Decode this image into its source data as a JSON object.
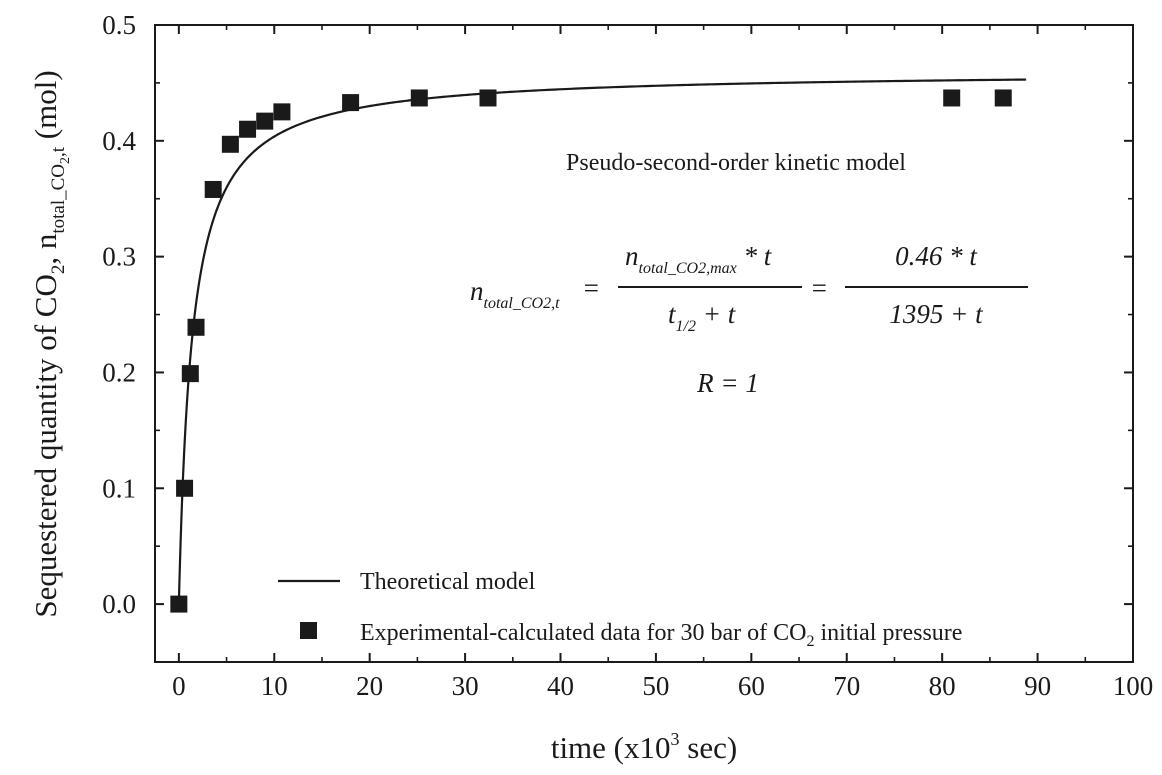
{
  "chart_data": {
    "type": "scatter",
    "title": "",
    "xlabel": {
      "prefix": "time (x10",
      "sup": "3",
      "suffix": " sec)"
    },
    "ylabel": {
      "main": "Sequestered quantity of CO",
      "sub1": "2",
      "mid": ", n",
      "sub2": "total_CO",
      "sub3": "2",
      "sub4": ",t",
      "suffix": " (mol)"
    },
    "xlim": [
      -2.5,
      100
    ],
    "ylim": [
      -0.05,
      0.5
    ],
    "x_ticks": [
      0,
      10,
      20,
      30,
      40,
      50,
      60,
      70,
      80,
      90,
      100
    ],
    "y_ticks": [
      0.0,
      0.1,
      0.2,
      0.3,
      0.4,
      0.5
    ],
    "y_tick_labels": [
      "0.0",
      "0.1",
      "0.2",
      "0.3",
      "0.4",
      "0.5"
    ],
    "x_tick_labels": [
      "0",
      "10",
      "20",
      "30",
      "40",
      "50",
      "60",
      "70",
      "80",
      "90",
      "100"
    ],
    "grid": false,
    "legend_position": "bottom-left",
    "series": [
      {
        "name": "Theoretical model",
        "kind": "line",
        "color": "#1a1a1a",
        "model": {
          "n_max": 0.46,
          "t_half": 1.395
        },
        "x_range": [
          0,
          88.8
        ]
      },
      {
        "name_prefix": "Experimental-calculated data for 30 bar of CO",
        "name_sub": "2",
        "name_suffix": " initial pressure",
        "kind": "scatter",
        "marker": "square",
        "color": "#1a1a1a",
        "points": [
          {
            "x": 0.0,
            "y": 0.0
          },
          {
            "x": 0.6,
            "y": 0.1
          },
          {
            "x": 1.2,
            "y": 0.199
          },
          {
            "x": 1.8,
            "y": 0.239
          },
          {
            "x": 3.6,
            "y": 0.358
          },
          {
            "x": 5.4,
            "y": 0.397
          },
          {
            "x": 7.2,
            "y": 0.41
          },
          {
            "x": 9.0,
            "y": 0.417
          },
          {
            "x": 10.8,
            "y": 0.425
          },
          {
            "x": 18.0,
            "y": 0.433
          },
          {
            "x": 25.2,
            "y": 0.437
          },
          {
            "x": 32.4,
            "y": 0.437
          },
          {
            "x": 81.0,
            "y": 0.437
          },
          {
            "x": 86.4,
            "y": 0.437
          }
        ]
      }
    ],
    "annotations": {
      "model_name": "Pseudo-second-order kinetic model",
      "lhs_n": "n",
      "lhs_sub": "total_CO2,t",
      "equals": "=",
      "frac1_num_n": "n",
      "frac1_num_sub": "total_CO2,max",
      "frac1_num_tail": " * t",
      "frac1_den_t": "t",
      "frac1_den_sub": "1/2",
      "frac1_den_tail": " + t",
      "frac2_num": "0.46 * t",
      "frac2_den": "1395 + t",
      "r_value": "R = 1"
    }
  }
}
